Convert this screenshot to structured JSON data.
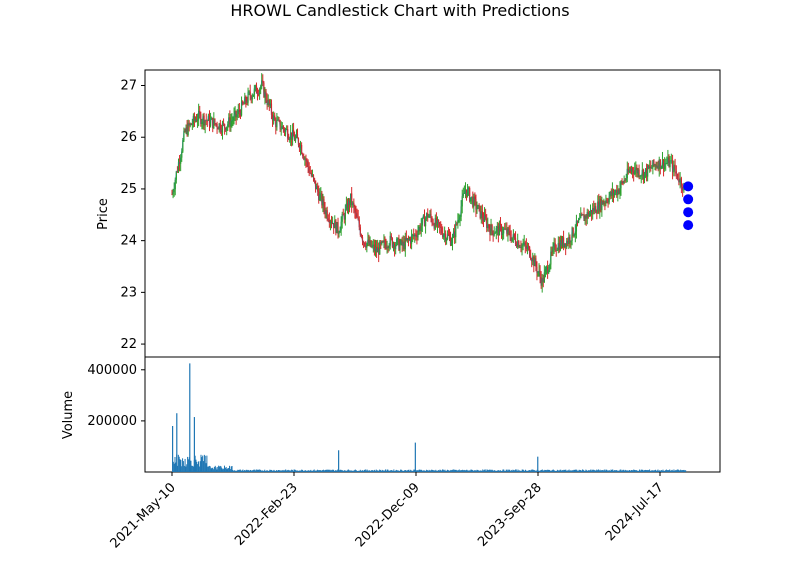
{
  "chart_data": {
    "type": "candlestick",
    "title": "HROWL Candlestick Chart with Predictions",
    "price_panel": {
      "ylabel": "Price",
      "ylim": [
        21.75,
        27.3
      ],
      "yticks": [
        22,
        23,
        24,
        25,
        26,
        27
      ],
      "grid": false,
      "series": [
        {
          "x": [
            "2021-05-10",
            "2021-06-10",
            "2021-07-10",
            "2021-08-10",
            "2021-09-10",
            "2021-10-10",
            "2021-11-10",
            "2021-12-10",
            "2022-01-10",
            "2022-02-10",
            "2022-03-10",
            "2022-04-10",
            "2022-05-10",
            "2022-06-10",
            "2022-07-10",
            "2022-08-10",
            "2022-09-10",
            "2022-10-10",
            "2022-11-10",
            "2022-12-10",
            "2023-01-10",
            "2023-02-10",
            "2023-03-10",
            "2023-04-10",
            "2023-05-10",
            "2023-06-10",
            "2023-07-10",
            "2023-08-10",
            "2023-09-10",
            "2023-10-10",
            "2023-11-10",
            "2023-12-10",
            "2024-01-10",
            "2024-02-10",
            "2024-03-10",
            "2024-04-10",
            "2024-05-10",
            "2024-06-10",
            "2024-07-10",
            "2024-08-10",
            "2024-09-15"
          ],
          "close": [
            24.9,
            26.1,
            26.4,
            26.3,
            26.2,
            26.4,
            26.8,
            27.0,
            26.3,
            26.1,
            25.9,
            25.2,
            24.6,
            24.2,
            24.8,
            24.0,
            23.8,
            24.0,
            23.9,
            24.1,
            24.5,
            24.2,
            24.0,
            25.0,
            24.6,
            24.2,
            24.2,
            24.0,
            23.8,
            23.2,
            23.9,
            24.0,
            24.4,
            24.6,
            24.8,
            25.0,
            25.4,
            25.3,
            25.5,
            25.5,
            25.0
          ]
        }
      ],
      "predictions": [
        25.05,
        24.8,
        24.55,
        24.3
      ]
    },
    "volume_panel": {
      "ylabel": "Volume",
      "ylim": [
        0,
        450000
      ],
      "yticks": [
        200000,
        400000
      ],
      "ytick_labels": [
        "200000",
        "400000"
      ],
      "spikes": [
        {
          "date": "2021-05-10",
          "value": 180000
        },
        {
          "date": "2021-05-20",
          "value": 230000
        },
        {
          "date": "2021-06-20",
          "value": 425000
        },
        {
          "date": "2021-07-01",
          "value": 215000
        },
        {
          "date": "2022-06-10",
          "value": 85000
        },
        {
          "date": "2022-12-10",
          "value": 115000
        },
        {
          "date": "2023-09-28",
          "value": 60000
        }
      ]
    },
    "xtick_labels": [
      "2021-May-10",
      "2022-Feb-23",
      "2022-Dec-09",
      "2023-Sep-28",
      "2024-Jul-17"
    ],
    "colors": {
      "up": "#2ca02c",
      "down": "#d62728",
      "line": "#1f77b4",
      "prediction": "#0000ff",
      "volume": "#1f77b4"
    }
  }
}
